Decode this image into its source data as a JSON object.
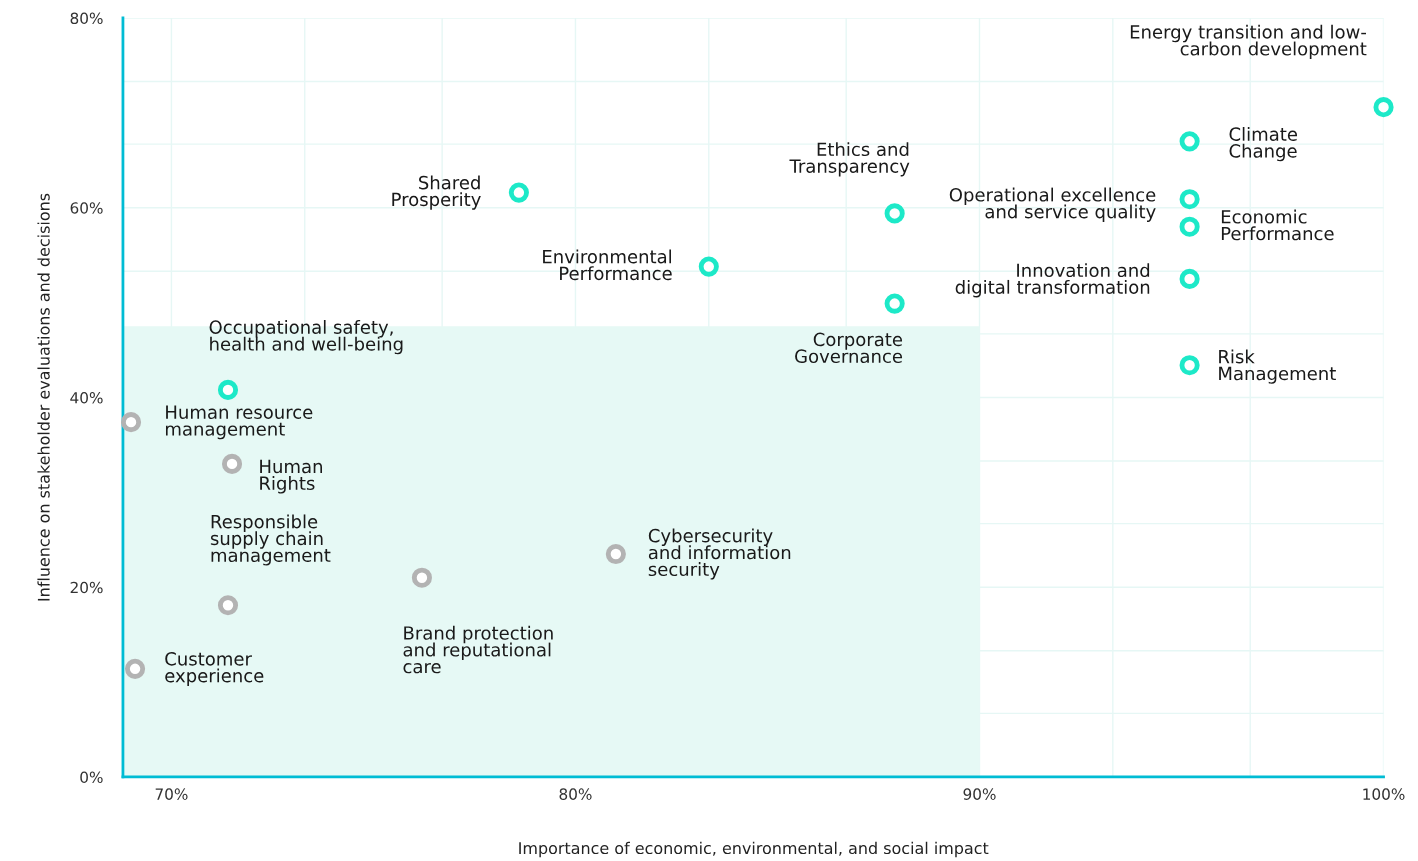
{
  "chart_data": {
    "type": "scatter",
    "xlabel": "Importance of economic, environmental, and social impact",
    "ylabel": "Influence on stakeholder evaluations and decisions",
    "xlim": [
      68.8,
      100
    ],
    "ylim": [
      0,
      80
    ],
    "xticks": [
      {
        "value": 70,
        "label": "70%"
      },
      {
        "value": 73.3,
        "label": null
      },
      {
        "value": 76.7,
        "label": null
      },
      {
        "value": 80,
        "label": "80%"
      },
      {
        "value": 83.3,
        "label": null
      },
      {
        "value": 86.7,
        "label": null
      },
      {
        "value": 90,
        "label": "90%"
      },
      {
        "value": 93.3,
        "label": null
      },
      {
        "value": 96.7,
        "label": null
      },
      {
        "value": 100,
        "label": "100%"
      }
    ],
    "yticks": [
      {
        "value": 0,
        "label": "0%"
      },
      {
        "value": 6.7,
        "label": null
      },
      {
        "value": 13.3,
        "label": null
      },
      {
        "value": 20,
        "label": "20%"
      },
      {
        "value": 26.7,
        "label": null
      },
      {
        "value": 33.3,
        "label": null
      },
      {
        "value": 40,
        "label": "40%"
      },
      {
        "value": 46.7,
        "label": null
      },
      {
        "value": 53.3,
        "label": null
      },
      {
        "value": 60,
        "label": "60%"
      },
      {
        "value": 66.7,
        "label": null
      },
      {
        "value": 73.3,
        "label": null
      },
      {
        "value": 80,
        "label": "80%"
      }
    ],
    "grid": true,
    "marker": "circle",
    "series": [
      {
        "type": "area",
        "marker": "none",
        "color": "#e6f9f5",
        "x": [
          68.8,
          90
        ],
        "values": [
          47.5,
          47.5
        ]
      },
      {
        "color": "#1de9c8",
        "x": [
          100,
          95.2,
          95.2,
          95.2,
          95.2,
          95.2,
          87.9,
          87.9,
          83.3,
          78.6,
          71.4
        ],
        "values": [
          70.6,
          67.0,
          60.9,
          58.0,
          52.5,
          43.4,
          59.4,
          49.9,
          53.8,
          61.6,
          40.8
        ]
      },
      {
        "color": "#b3b3b3",
        "x": [
          69.0,
          71.5,
          71.4,
          69.1,
          76.2,
          81.0
        ],
        "values": [
          37.4,
          33.0,
          18.1,
          11.4,
          21.0,
          23.5
        ]
      }
    ],
    "annotations": [
      {
        "text": "Energy transition and low-\ncarbon development",
        "x": 100,
        "y": 70.6
      },
      {
        "text": "Climate\nChange",
        "x": 95.2,
        "y": 67.0
      },
      {
        "text": "Operational excellence\nand service quality",
        "x": 95.2,
        "y": 60.9
      },
      {
        "text": "Economic\nPerformance",
        "x": 95.2,
        "y": 58.0
      },
      {
        "text": "Innovation and\ndigital transformation",
        "x": 95.2,
        "y": 52.5
      },
      {
        "text": "Risk\nManagement",
        "x": 95.2,
        "y": 43.4
      },
      {
        "text": "Ethics and\nTransparency",
        "x": 87.9,
        "y": 59.4
      },
      {
        "text": "Corporate\nGovernance",
        "x": 87.9,
        "y": 49.9
      },
      {
        "text": "Environmental\nPerformance",
        "x": 83.3,
        "y": 53.8
      },
      {
        "text": "Shared\nProsperity",
        "x": 78.6,
        "y": 61.6
      },
      {
        "text": "Occupational safety,\nhealth and well-being",
        "x": 71.4,
        "y": 40.8
      },
      {
        "text": "Human resource\nmanagement",
        "x": 69.0,
        "y": 37.4
      },
      {
        "text": "Human\nRights",
        "x": 71.5,
        "y": 33.0
      },
      {
        "text": "Responsible\nsupply chain\nmanagement",
        "x": 71.4,
        "y": 18.1
      },
      {
        "text": "Customer\nexperience",
        "x": 69.1,
        "y": 11.4
      },
      {
        "text": "Brand protection\nand reputational\ncare",
        "x": 76.2,
        "y": 21.0
      },
      {
        "text": "Cybersecurity\nand information\nsecurity",
        "x": 81.0,
        "y": 23.5
      }
    ]
  }
}
